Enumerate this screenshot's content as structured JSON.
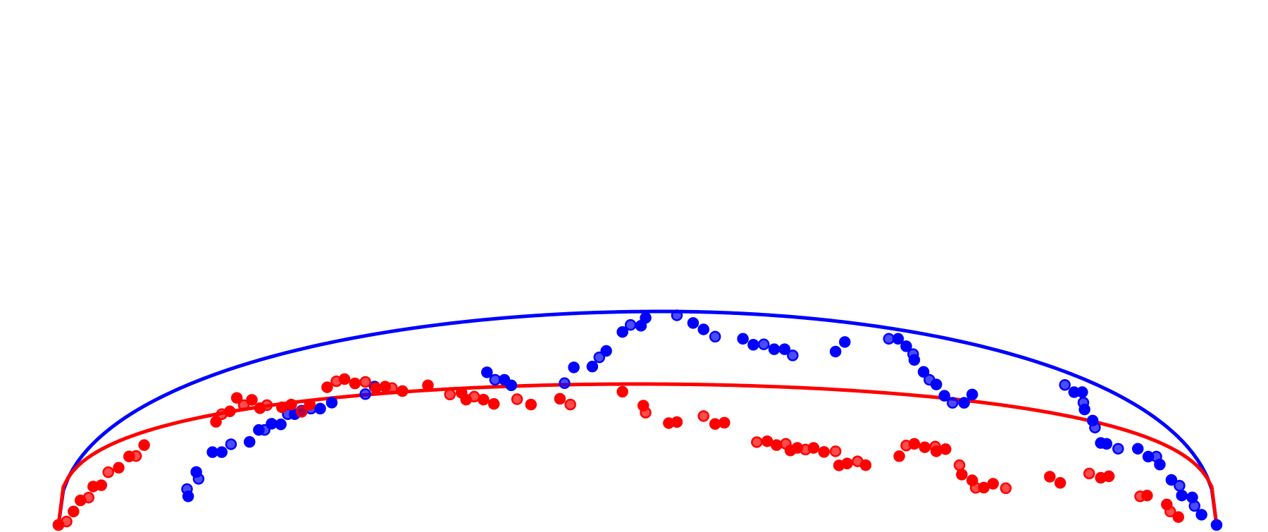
{
  "chart_data": {
    "type": "scatter",
    "title": "",
    "xlabel": "",
    "ylabel": "",
    "xlim": [
      0,
      1
    ],
    "ylim": [
      0,
      1
    ],
    "grid": false,
    "axes_visible": false,
    "legend": "none",
    "series": [
      {
        "color": "#0000ff",
        "points": [
          [
            0.0,
            0.0
          ],
          [
            0.111,
            0.168
          ],
          [
            0.112,
            0.134
          ],
          [
            0.119,
            0.248
          ],
          [
            0.121,
            0.216
          ],
          [
            0.133,
            0.341
          ],
          [
            0.141,
            0.341
          ],
          [
            0.149,
            0.378
          ],
          [
            0.165,
            0.389
          ],
          [
            0.173,
            0.445
          ],
          [
            0.178,
            0.445
          ],
          [
            0.184,
            0.474
          ],
          [
            0.192,
            0.471
          ],
          [
            0.198,
            0.519
          ],
          [
            0.204,
            0.519
          ],
          [
            0.21,
            0.535
          ],
          [
            0.218,
            0.545
          ],
          [
            0.226,
            0.545
          ],
          [
            0.236,
            0.573
          ],
          [
            0.265,
            0.613
          ],
          [
            0.273,
            0.648
          ],
          [
            0.37,
            0.715
          ],
          [
            0.377,
            0.68
          ],
          [
            0.385,
            0.68
          ],
          [
            0.391,
            0.654
          ],
          [
            0.437,
            0.664
          ],
          [
            0.445,
            0.738
          ],
          [
            0.461,
            0.742
          ],
          [
            0.467,
            0.785
          ],
          [
            0.473,
            0.815
          ],
          [
            0.487,
            0.904
          ],
          [
            0.494,
            0.937
          ],
          [
            0.503,
            0.933
          ],
          [
            0.507,
            0.97
          ],
          [
            0.534,
            0.982
          ],
          [
            0.548,
            0.946
          ],
          [
            0.557,
            0.916
          ],
          [
            0.567,
            0.882
          ],
          [
            0.591,
            0.872
          ],
          [
            0.6,
            0.844
          ],
          [
            0.609,
            0.846
          ],
          [
            0.618,
            0.823
          ],
          [
            0.627,
            0.823
          ],
          [
            0.634,
            0.794
          ],
          [
            0.671,
            0.812
          ],
          [
            0.679,
            0.857
          ],
          [
            0.717,
            0.872
          ],
          [
            0.725,
            0.872
          ],
          [
            0.732,
            0.837
          ],
          [
            0.738,
            0.8
          ],
          [
            0.739,
            0.773
          ],
          [
            0.747,
            0.717
          ],
          [
            0.752,
            0.68
          ],
          [
            0.758,
            0.658
          ],
          [
            0.765,
            0.605
          ],
          [
            0.772,
            0.572
          ],
          [
            0.782,
            0.572
          ],
          [
            0.789,
            0.611
          ],
          [
            0.869,
            0.656
          ],
          [
            0.877,
            0.622
          ],
          [
            0.884,
            0.622
          ],
          [
            0.885,
            0.573
          ],
          [
            0.886,
            0.541
          ],
          [
            0.893,
            0.489
          ],
          [
            0.895,
            0.456
          ],
          [
            0.9,
            0.384
          ],
          [
            0.905,
            0.38
          ],
          [
            0.915,
            0.357
          ],
          [
            0.932,
            0.357
          ],
          [
            0.941,
            0.32
          ],
          [
            0.948,
            0.32
          ],
          [
            0.951,
            0.283
          ],
          [
            0.961,
            0.211
          ],
          [
            0.968,
            0.184
          ],
          [
            0.97,
            0.138
          ],
          [
            0.979,
            0.129
          ],
          [
            0.981,
            0.089
          ],
          [
            0.987,
            0.048
          ],
          [
            1.0,
            0.0
          ]
        ]
      },
      {
        "color": "#ff0000",
        "points": [
          [
            0.0,
            0.0
          ],
          [
            0.007,
            0.016
          ],
          [
            0.013,
            0.063
          ],
          [
            0.019,
            0.115
          ],
          [
            0.026,
            0.128
          ],
          [
            0.03,
            0.18
          ],
          [
            0.037,
            0.186
          ],
          [
            0.043,
            0.247
          ],
          [
            0.052,
            0.268
          ],
          [
            0.061,
            0.321
          ],
          [
            0.067,
            0.323
          ],
          [
            0.074,
            0.374
          ],
          [
            0.136,
            0.483
          ],
          [
            0.141,
            0.519
          ],
          [
            0.148,
            0.532
          ],
          [
            0.154,
            0.595
          ],
          [
            0.16,
            0.561
          ],
          [
            0.167,
            0.586
          ],
          [
            0.174,
            0.547
          ],
          [
            0.18,
            0.561
          ],
          [
            0.193,
            0.551
          ],
          [
            0.201,
            0.564
          ],
          [
            0.21,
            0.53
          ],
          [
            0.217,
            0.564
          ],
          [
            0.232,
            0.645
          ],
          [
            0.24,
            0.673
          ],
          [
            0.247,
            0.683
          ],
          [
            0.256,
            0.663
          ],
          [
            0.265,
            0.67
          ],
          [
            0.274,
            0.641
          ],
          [
            0.282,
            0.648
          ],
          [
            0.288,
            0.641
          ],
          [
            0.297,
            0.627
          ],
          [
            0.319,
            0.654
          ],
          [
            0.338,
            0.611
          ],
          [
            0.348,
            0.619
          ],
          [
            0.352,
            0.587
          ],
          [
            0.359,
            0.601
          ],
          [
            0.367,
            0.587
          ],
          [
            0.376,
            0.567
          ],
          [
            0.396,
            0.589
          ],
          [
            0.408,
            0.564
          ],
          [
            0.433,
            0.591
          ],
          [
            0.442,
            0.564
          ],
          [
            0.487,
            0.624
          ],
          [
            0.505,
            0.559
          ],
          [
            0.507,
            0.526
          ],
          [
            0.527,
            0.477
          ],
          [
            0.534,
            0.482
          ],
          [
            0.557,
            0.51
          ],
          [
            0.567,
            0.473
          ],
          [
            0.575,
            0.479
          ],
          [
            0.603,
            0.388
          ],
          [
            0.612,
            0.392
          ],
          [
            0.62,
            0.374
          ],
          [
            0.628,
            0.38
          ],
          [
            0.632,
            0.349
          ],
          [
            0.638,
            0.361
          ],
          [
            0.645,
            0.353
          ],
          [
            0.652,
            0.361
          ],
          [
            0.661,
            0.342
          ],
          [
            0.671,
            0.345
          ],
          [
            0.674,
            0.279
          ],
          [
            0.681,
            0.288
          ],
          [
            0.69,
            0.298
          ],
          [
            0.697,
            0.28
          ],
          [
            0.726,
            0.322
          ],
          [
            0.732,
            0.372
          ],
          [
            0.739,
            0.38
          ],
          [
            0.748,
            0.364
          ],
          [
            0.757,
            0.367
          ],
          [
            0.758,
            0.345
          ],
          [
            0.766,
            0.355
          ],
          [
            0.778,
            0.28
          ],
          [
            0.78,
            0.236
          ],
          [
            0.789,
            0.209
          ],
          [
            0.792,
            0.174
          ],
          [
            0.799,
            0.175
          ],
          [
            0.807,
            0.193
          ],
          [
            0.818,
            0.172
          ],
          [
            0.856,
            0.226
          ],
          [
            0.865,
            0.197
          ],
          [
            0.89,
            0.241
          ],
          [
            0.9,
            0.221
          ],
          [
            0.907,
            0.228
          ],
          [
            0.934,
            0.134
          ],
          [
            0.94,
            0.138
          ],
          [
            0.957,
            0.096
          ],
          [
            0.96,
            0.063
          ],
          [
            0.967,
            0.037
          ]
        ]
      }
    ],
    "curves": [
      {
        "color": "#0000ff",
        "peak_x": 0.52,
        "peak_y": 1.0,
        "shape": 0.44
      },
      {
        "color": "#ff0000",
        "peak_x": 0.5,
        "peak_y": 0.66,
        "shape": 0.32
      }
    ]
  }
}
